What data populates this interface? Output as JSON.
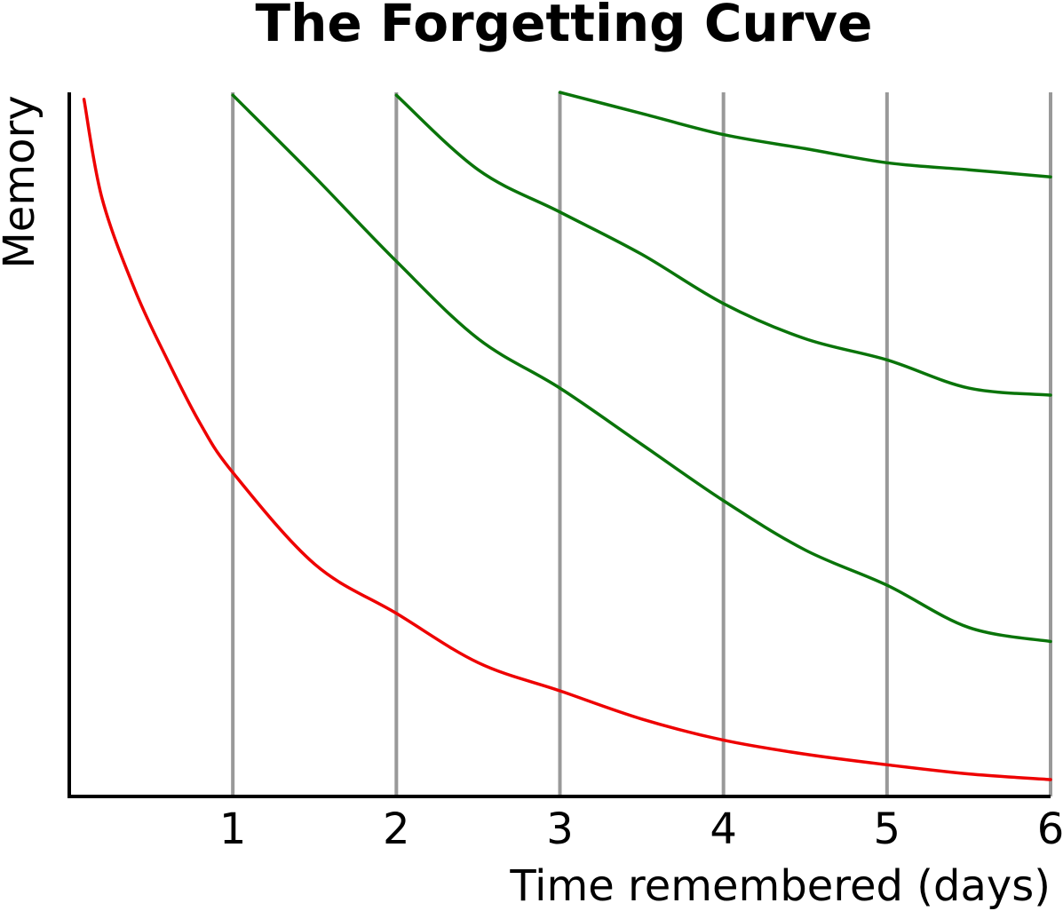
{
  "chart_data": {
    "type": "line",
    "title": "The Forgetting Curve",
    "xlabel": "Time remembered (days)",
    "ylabel": "Memory",
    "xlim": [
      0,
      6
    ],
    "ylim": [
      0,
      1
    ],
    "x_ticks": [
      "1",
      "2",
      "3",
      "4",
      "5",
      "6"
    ],
    "x_tick_values": [
      1,
      2,
      3,
      4,
      5,
      6
    ],
    "grid": "vertical lines at each day",
    "legend": "none",
    "series": [
      {
        "color": "#ee0000",
        "x": [
          0.09,
          0.2,
          0.4,
          0.6,
          0.8,
          1.0,
          1.5,
          2.0,
          2.5,
          3.0,
          3.5,
          4.0,
          4.5,
          5.0,
          5.5,
          6.0
        ],
        "y": [
          0.99,
          0.85,
          0.72,
          0.62,
          0.53,
          0.46,
          0.33,
          0.26,
          0.19,
          0.15,
          0.11,
          0.08,
          0.06,
          0.045,
          0.032,
          0.024
        ]
      },
      {
        "color": "#0a740a",
        "x": [
          1.0,
          1.5,
          2.0,
          2.5,
          3.0,
          3.5,
          4.0,
          4.5,
          5.0,
          5.5,
          6.0
        ],
        "y": [
          0.996,
          0.88,
          0.76,
          0.65,
          0.58,
          0.5,
          0.42,
          0.35,
          0.3,
          0.24,
          0.22
        ]
      },
      {
        "color": "#0a740a",
        "x": [
          2.0,
          2.5,
          3.0,
          3.5,
          4.0,
          4.5,
          5.0,
          5.5,
          6.0
        ],
        "y": [
          0.996,
          0.89,
          0.83,
          0.77,
          0.7,
          0.65,
          0.62,
          0.58,
          0.57
        ]
      },
      {
        "color": "#0a740a",
        "x": [
          3.0,
          3.5,
          4.0,
          4.5,
          5.0,
          5.5,
          6.0
        ],
        "y": [
          1.0,
          0.97,
          0.94,
          0.92,
          0.9,
          0.89,
          0.88
        ]
      }
    ],
    "colors": {
      "axis": "#000000",
      "gridline": "#999999",
      "initial_curve": "#ee0000",
      "review_curves": "#0a740a"
    }
  }
}
